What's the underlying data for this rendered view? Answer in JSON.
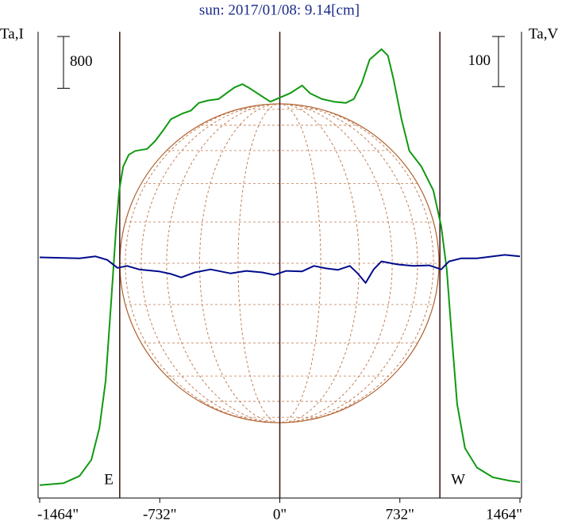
{
  "chart_data": {
    "type": "line",
    "title": "sun: 2017/01/08: 9.14[cm]",
    "y_label": "Ta,I",
    "y2_label": "Ta,V",
    "xlim": [
      -1464,
      1464
    ],
    "xticks": [
      {
        "value": -1464,
        "label": "-1464\""
      },
      {
        "value": -732,
        "label": "-732\""
      },
      {
        "value": 0,
        "label": "0\""
      },
      {
        "value": 732,
        "label": "732\""
      },
      {
        "value": 1464,
        "label": "1464\""
      }
    ],
    "ylim": [
      -200,
      7000
    ],
    "y2lim": [
      -480,
      450
    ],
    "limb_lines": [
      {
        "value": -976,
        "label": "E"
      },
      {
        "value": 976,
        "label": "W"
      }
    ],
    "center_line": 0,
    "scale_bars": [
      {
        "value": 800,
        "axis": "y"
      },
      {
        "value": 100,
        "axis": "y2"
      }
    ],
    "series": [
      {
        "name": "I",
        "color": "#119911",
        "x": [
          -1464,
          -1318,
          -1221,
          -1149,
          -1100,
          -1062,
          -1028,
          -999,
          -979,
          -955,
          -921,
          -882,
          -809,
          -761,
          -713,
          -664,
          -591,
          -543,
          -494,
          -436,
          -373,
          -325,
          -276,
          -228,
          -179,
          -107,
          -58,
          -10,
          63,
          136,
          184,
          257,
          329,
          402,
          451,
          499,
          548,
          620,
          659,
          693,
          742,
          790,
          863,
          936,
          984,
          1018,
          1047,
          1081,
          1129,
          1202,
          1299,
          1396,
          1464
        ],
        "values": [
          0,
          30,
          140,
          390,
          880,
          1610,
          2840,
          3940,
          4550,
          4920,
          5100,
          5160,
          5190,
          5310,
          5470,
          5650,
          5740,
          5780,
          5900,
          5940,
          5960,
          6050,
          6140,
          6190,
          6120,
          6000,
          5920,
          5970,
          6050,
          6170,
          6050,
          5960,
          5920,
          5900,
          5960,
          6200,
          6570,
          6730,
          6630,
          6270,
          5650,
          5160,
          4920,
          4550,
          4000,
          3330,
          2350,
          1250,
          570,
          270,
          120,
          70,
          45
        ]
      },
      {
        "name": "V",
        "color": "#000c8c",
        "axis": "y2",
        "x": [
          -1464,
          -1221,
          -1124,
          -1052,
          -989,
          -931,
          -858,
          -737,
          -664,
          -601,
          -519,
          -422,
          -301,
          -204,
          -107,
          -34,
          39,
          136,
          208,
          281,
          354,
          427,
          475,
          523,
          572,
          620,
          717,
          814,
          911,
          984,
          1032,
          1105,
          1202,
          1299,
          1372,
          1464
        ],
        "values": [
          0,
          -2,
          2,
          -5,
          -21,
          -17,
          -24,
          -28,
          -33,
          -40,
          -30,
          -24,
          -32,
          -27,
          -30,
          -35,
          -27,
          -28,
          -17,
          -22,
          -25,
          -17,
          -32,
          -51,
          -24,
          -8,
          -14,
          -17,
          -16,
          -24,
          -8,
          -2,
          -2,
          2,
          5,
          2
        ]
      }
    ]
  }
}
